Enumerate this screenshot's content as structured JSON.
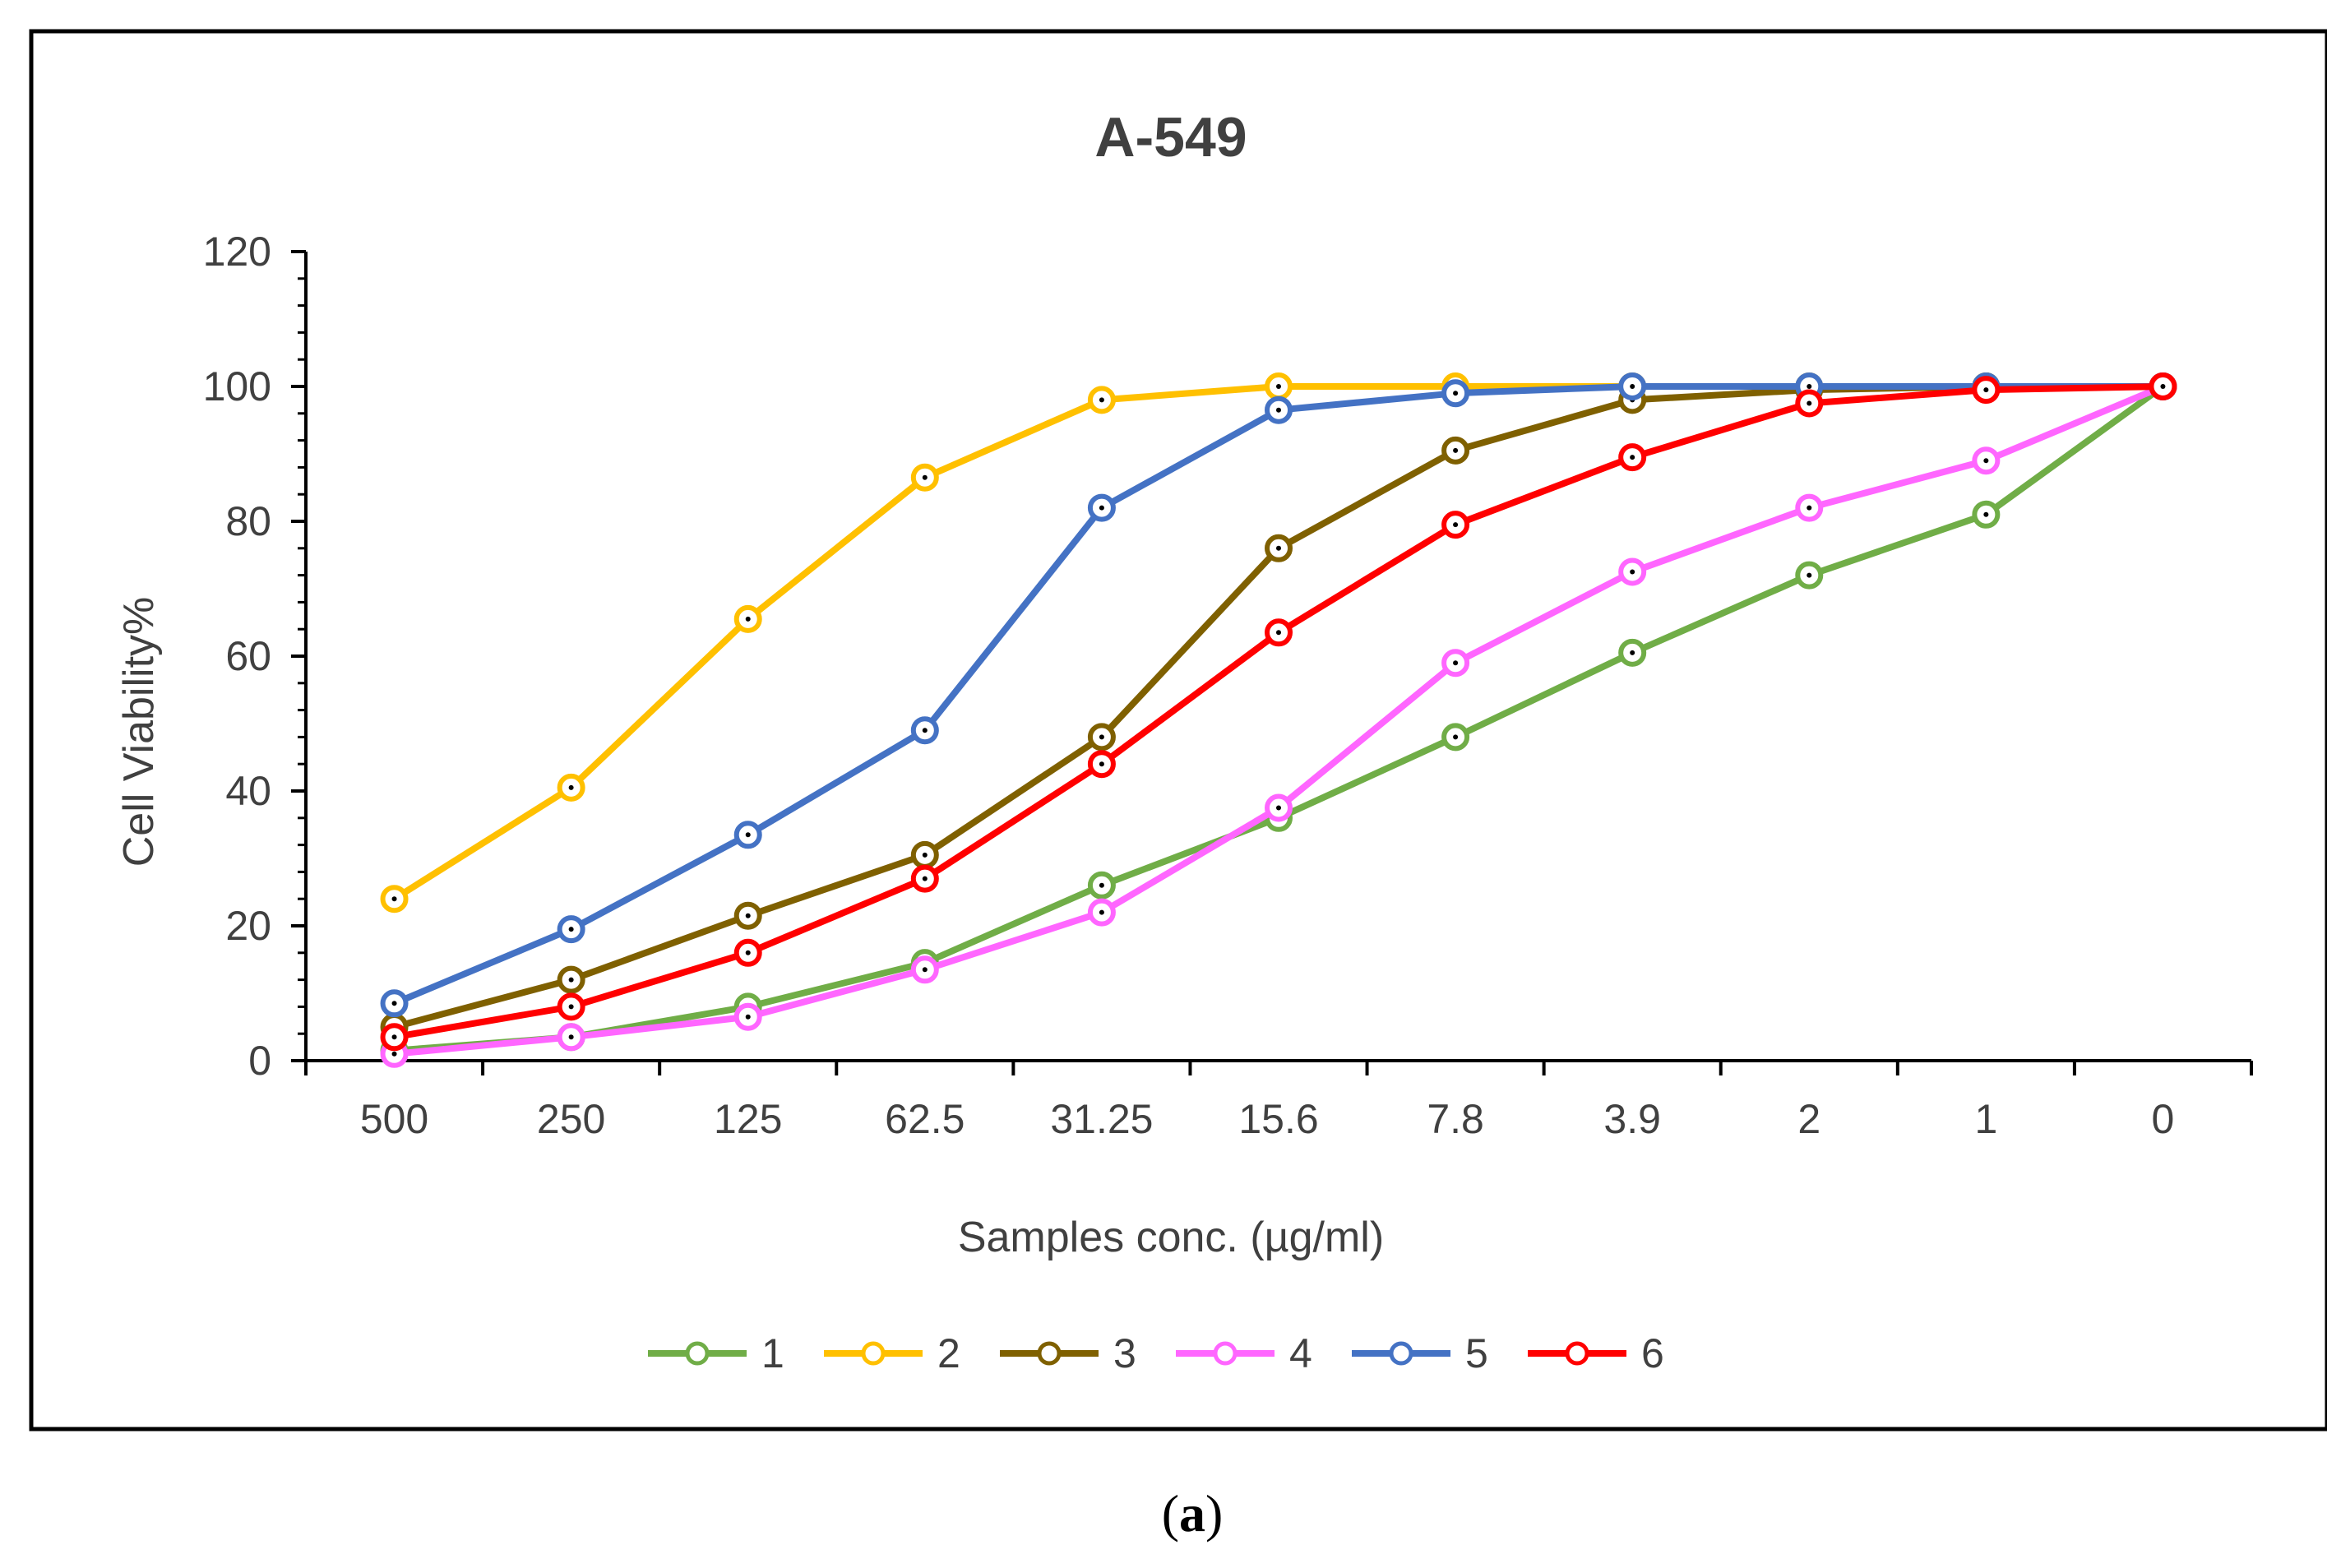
{
  "figure": {
    "caption": "(a)",
    "caption_bold": "a",
    "caption_open": "(",
    "caption_close": ")"
  },
  "chart_data": {
    "type": "line",
    "title": "A-549",
    "xlabel": "Samples conc. (µg/ml)",
    "ylabel": "Cell Viability%",
    "categories": [
      "500",
      "250",
      "125",
      "62.5",
      "31.25",
      "15.6",
      "7.8",
      "3.9",
      "2",
      "1",
      "0"
    ],
    "ylim": [
      0,
      120
    ],
    "yticks": [
      0,
      20,
      40,
      60,
      80,
      100,
      120
    ],
    "grid": false,
    "legend_position": "bottom",
    "series": [
      {
        "name": "1",
        "color": "#70ad47",
        "values": [
          1.5,
          3.5,
          8,
          14.5,
          26,
          36,
          48,
          60.5,
          72,
          81,
          100
        ]
      },
      {
        "name": "2",
        "color": "#ffc000",
        "values": [
          24,
          40.5,
          65.5,
          86.5,
          98,
          100,
          100,
          100,
          100,
          100,
          100
        ]
      },
      {
        "name": "3",
        "color": "#7f6000",
        "values": [
          5,
          12,
          21.5,
          30.5,
          48,
          76,
          90.5,
          98,
          99.5,
          100,
          100
        ]
      },
      {
        "name": "4",
        "color": "#ff66ff",
        "values": [
          1,
          3.5,
          6.5,
          13.5,
          22,
          37.5,
          59,
          72.5,
          82,
          89,
          100
        ]
      },
      {
        "name": "5",
        "color": "#4472c4",
        "values": [
          8.5,
          19.5,
          33.5,
          49,
          82,
          96.5,
          99,
          100,
          100,
          100,
          100
        ]
      },
      {
        "name": "6",
        "color": "#ff0000",
        "values": [
          3.5,
          8,
          16,
          27,
          44,
          63.5,
          79.5,
          89.5,
          97.5,
          99.5,
          100
        ]
      }
    ]
  }
}
